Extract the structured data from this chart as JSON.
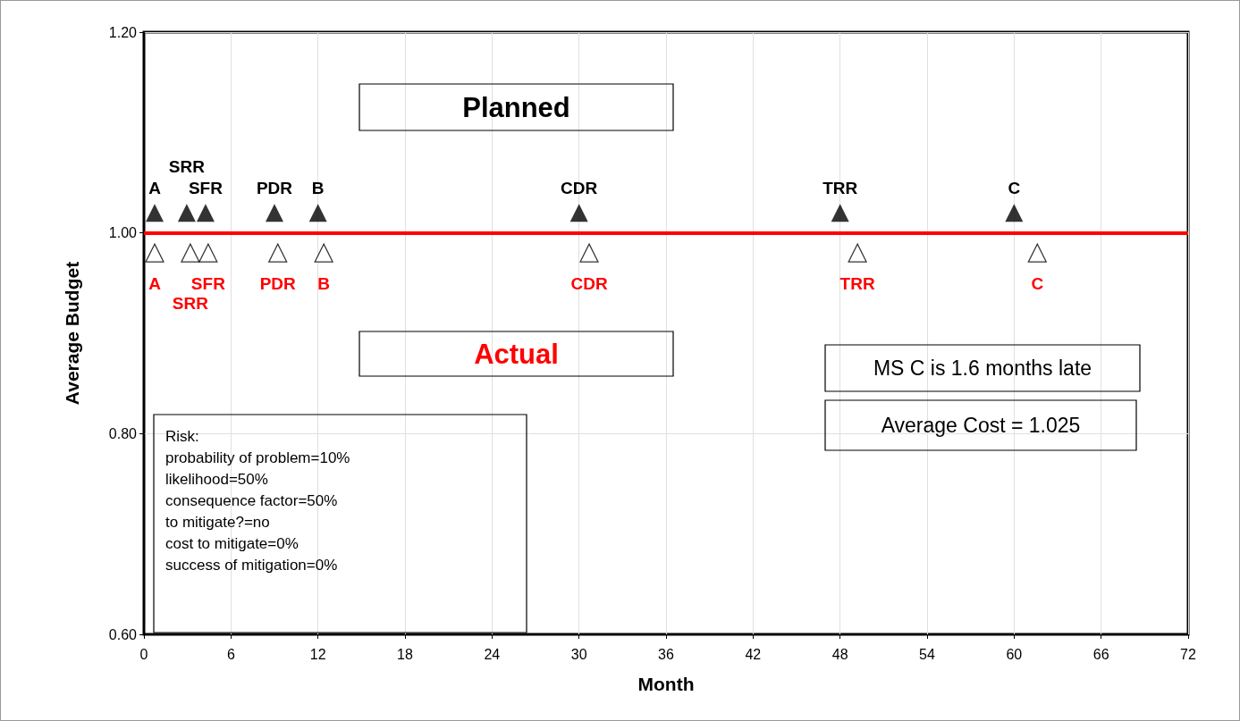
{
  "chart_data": {
    "type": "scatter",
    "xlabel": "Month",
    "ylabel": "Average Budget",
    "xlim": [
      0,
      72
    ],
    "xticks": [
      0,
      6,
      12,
      18,
      24,
      30,
      36,
      42,
      48,
      54,
      60,
      66,
      72
    ],
    "ylim": [
      0.6,
      1.2
    ],
    "yticks": [
      {
        "value": 0.6,
        "label": "0.60"
      },
      {
        "value": 0.8,
        "label": "0.80"
      },
      {
        "value": 1.0,
        "label": "1.00"
      },
      {
        "value": 1.2,
        "label": "1.20"
      }
    ],
    "grid": true,
    "marker": "triangle",
    "series": [
      {
        "color": "#000000",
        "x": [
          0.74,
          2.95,
          4.25,
          9.0,
          12.0,
          30.0,
          48.0,
          60.0
        ],
        "values": [
          1.02,
          1.02,
          1.02,
          1.02,
          1.02,
          1.02,
          1.02,
          1.02
        ]
      },
      {
        "color": "#000000",
        "x": [
          0.74,
          3.2,
          4.43,
          9.23,
          12.4,
          30.7,
          49.2,
          61.6
        ],
        "values": [
          0.98,
          0.98,
          0.98,
          0.98,
          0.98,
          0.98,
          0.98,
          0.98
        ]
      }
    ],
    "ref_lines": [
      {
        "axis": "y",
        "value": 1.0,
        "color": "#ff0000",
        "line_style": "solid"
      }
    ],
    "annotations": [
      "Planned",
      "Actual",
      "MS C is 1.6 months late",
      "Average Cost = 1.025",
      "Risk:\nprobability of problem=10%\nlikelihood=50%\nconsequence factor=50%\nto mitigate?=no\ncost to mitigate=0%\nsuccess of mitigation=0%",
      {
        "text": "A",
        "x": 0.74,
        "y": 1.02
      },
      {
        "text": "SRR",
        "x": 2.95,
        "y": 1.02
      },
      {
        "text": "SFR",
        "x": 4.25,
        "y": 1.02
      },
      {
        "text": "PDR",
        "x": 9.0,
        "y": 1.02
      },
      {
        "text": "B",
        "x": 12.0,
        "y": 1.02
      },
      {
        "text": "CDR",
        "x": 30.0,
        "y": 1.02
      },
      {
        "text": "TRR",
        "x": 48.0,
        "y": 1.02
      },
      {
        "text": "C",
        "x": 60.0,
        "y": 1.02
      },
      {
        "text": "A",
        "x": 0.74,
        "y": 0.98
      },
      {
        "text": "SRR",
        "x": 3.2,
        "y": 0.98
      },
      {
        "text": "SFR",
        "x": 4.43,
        "y": 0.98
      },
      {
        "text": "PDR",
        "x": 9.23,
        "y": 0.98
      },
      {
        "text": "B",
        "x": 12.4,
        "y": 0.98
      },
      {
        "text": "CDR",
        "x": 30.7,
        "y": 0.98
      },
      {
        "text": "TRR",
        "x": 49.2,
        "y": 0.98
      },
      {
        "text": "C",
        "x": 61.6,
        "y": 0.98
      }
    ]
  }
}
